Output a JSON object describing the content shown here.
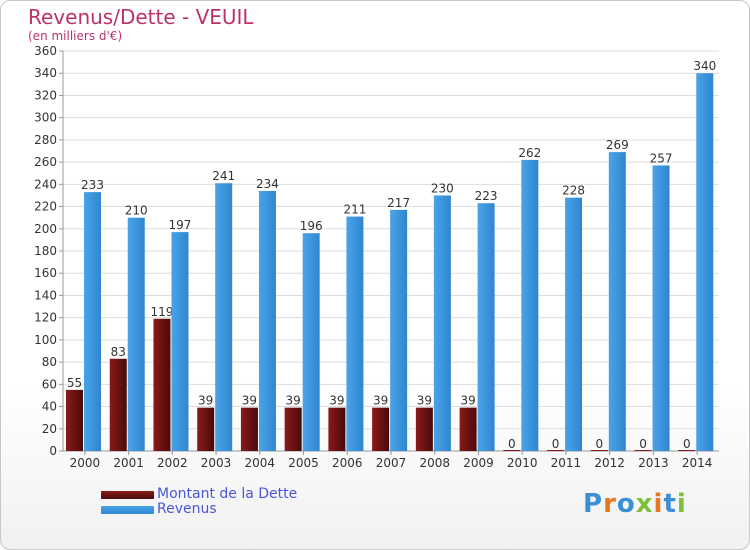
{
  "header": {
    "title": "Revenus/Dette - VEUIL",
    "subtitle": "(en milliers d'€)"
  },
  "logo": {
    "text": "Proxiti",
    "colors": [
      "#3b8fd6",
      "#e8781f",
      "#3b8fd6",
      "#7fbf3a",
      "#e8781f",
      "#3b8fd6",
      "#7fbf3a"
    ]
  },
  "colors": {
    "dette": "#8b1a1a",
    "revenus": "#4aa3e8",
    "text": "#333333",
    "grid": "#dddddd"
  },
  "chart_data": {
    "type": "bar",
    "title": "Revenus/Dette - VEUIL",
    "subtitle": "(en milliers d'€)",
    "categories": [
      "2000",
      "2001",
      "2002",
      "2003",
      "2004",
      "2005",
      "2006",
      "2007",
      "2008",
      "2009",
      "2010",
      "2011",
      "2012",
      "2013",
      "2014"
    ],
    "series": [
      {
        "name": "Montant de la Dette",
        "values": [
          55,
          83,
          119,
          39,
          39,
          39,
          39,
          39,
          39,
          39,
          0,
          0,
          0,
          0,
          0
        ]
      },
      {
        "name": "Revenus",
        "values": [
          233,
          210,
          197,
          241,
          234,
          196,
          211,
          217,
          230,
          223,
          262,
          228,
          269,
          257,
          340
        ]
      }
    ],
    "yticks": [
      0,
      20,
      40,
      60,
      80,
      100,
      120,
      140,
      160,
      180,
      200,
      220,
      240,
      260,
      280,
      300,
      320,
      340,
      360
    ],
    "ylim": [
      0,
      360
    ],
    "grid": true,
    "legend": "bottom-left"
  }
}
